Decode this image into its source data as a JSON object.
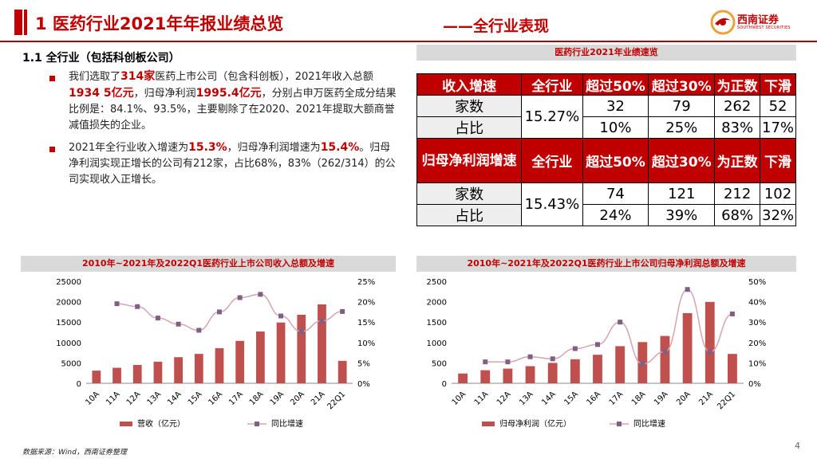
{
  "header": {
    "title": "1 医药行业2021年年报业绩总览",
    "subtitle": "——全行业表现",
    "logo_text": "西南证券",
    "logo_sub": "SOUTHWEST SECURITIES"
  },
  "section": {
    "heading": "1.1 全行业（包括科创板公司）",
    "p1": {
      "a": "我们选取了",
      "h1": "314家",
      "b": "医药上市公司（包含科创板），2021年收入总额",
      "h2": "1934 5亿元",
      "c": "，归母净利润",
      "h3": "1995.4亿元",
      "d": "，分别占申万医药全成分结果比例是：84.1%、93.5%，主要剔除了在2020、2021年提取大额商誉减值损失的企业。"
    },
    "p2": {
      "a": "2021年全行业收入增速为",
      "h1": "15.3%",
      "b": "，归母净利润增速为",
      "h2": "15.4%",
      "c": "。归母净利润实现正增长的公司有212家，占比68%，83%（262/314）的公司实现收入正增长。"
    }
  },
  "table": {
    "title": "医药行业2021年业绩速览",
    "header1": [
      "收入增速",
      "全行业",
      "超过50%",
      "超过30%",
      "为正数",
      "下滑"
    ],
    "rows1": [
      {
        "label": "家数",
        "values": [
          "32",
          "79",
          "262",
          "52"
        ]
      },
      {
        "label": "占比",
        "values": [
          "10%",
          "25%",
          "83%",
          "17%"
        ]
      }
    ],
    "total1": "15.27%",
    "header2": [
      "归母净利润增速",
      "全行业",
      "超过50%",
      "超过30%",
      "为正数",
      "下滑"
    ],
    "rows2": [
      {
        "label": "家数",
        "values": [
          "74",
          "121",
          "212",
          "102"
        ]
      },
      {
        "label": "占比",
        "values": [
          "24%",
          "39%",
          "68%",
          "32%"
        ]
      }
    ],
    "total2": "15.43%"
  },
  "chart_data": [
    {
      "type": "bar",
      "title": "2010年~2021年及2022Q1医药行业上市公司收入总额及增速",
      "categories": [
        "10A",
        "11A",
        "12A",
        "13A",
        "14A",
        "15A",
        "16A",
        "17A",
        "18A",
        "19A",
        "20A",
        "21A",
        "22Q1"
      ],
      "series": [
        {
          "name": "营收（亿元）",
          "kind": "bar",
          "axis": "left",
          "values": [
            3100,
            3800,
            4500,
            5300,
            6400,
            7200,
            8600,
            10400,
            12700,
            14900,
            16800,
            19345,
            5500
          ]
        },
        {
          "name": "同比增速",
          "kind": "line",
          "axis": "right",
          "values": [
            null,
            19.5,
            18.8,
            16.0,
            14.5,
            13.0,
            17.5,
            21.0,
            21.8,
            16.5,
            12.7,
            15.3,
            17.6
          ]
        }
      ],
      "y_left_ticks": [
        "0",
        "5000",
        "10000",
        "15000",
        "20000",
        "25000"
      ],
      "y_right_ticks": [
        "0%",
        "5%",
        "10%",
        "15%",
        "20%",
        "25%"
      ],
      "ylim_left": [
        0,
        25000
      ],
      "ylim_right": [
        0,
        25
      ],
      "legend": [
        "营收（亿元）",
        "同比增速"
      ]
    },
    {
      "type": "bar",
      "title": "2010年~2021年及2022Q1医药行业上市公司归母净利润总额及增速",
      "categories": [
        "10A",
        "11A",
        "12A",
        "13A",
        "14A",
        "15A",
        "16A",
        "17A",
        "18A",
        "19A",
        "20A",
        "21A",
        "22Q1"
      ],
      "series": [
        {
          "name": "归母净利润（亿元）",
          "kind": "bar",
          "axis": "left",
          "values": [
            240,
            320,
            360,
            420,
            500,
            590,
            700,
            910,
            1010,
            1160,
            1720,
            1995,
            720
          ]
        },
        {
          "name": "同比增速",
          "kind": "line",
          "axis": "right",
          "values": [
            null,
            10.5,
            10.5,
            13.0,
            12.0,
            17.0,
            19.0,
            30.0,
            9.5,
            15.5,
            46.0,
            15.4,
            34.0
          ]
        }
      ],
      "y_left_ticks": [
        "0",
        "500",
        "1000",
        "1500",
        "2000",
        "2500"
      ],
      "y_right_ticks": [
        "0%",
        "10%",
        "20%",
        "30%",
        "40%",
        "50%"
      ],
      "ylim_left": [
        0,
        2500
      ],
      "ylim_right": [
        0,
        50
      ],
      "legend": [
        "归母净利润（亿元）",
        "同比增速"
      ]
    }
  ],
  "colors": {
    "accent": "#c00000",
    "bar": "#c0504d",
    "line": "#d7a3ad",
    "marker": "#7f6084"
  },
  "footer": {
    "source": "数据来源：Wind，西南证券整理",
    "page": "4"
  }
}
